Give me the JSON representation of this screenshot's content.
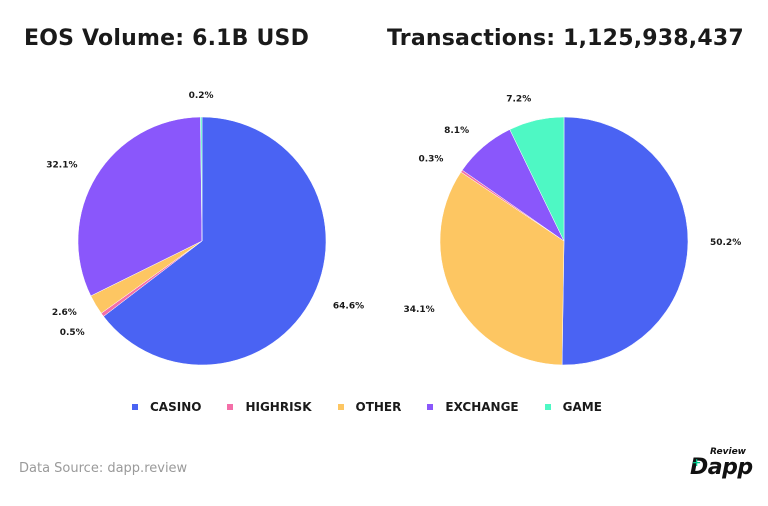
{
  "titles": {
    "left": "EOS Volume: 6.1B USD",
    "right": "Transactions: 1,125,938,437"
  },
  "colors": {
    "CASINO": "#4a63f3",
    "HIGHRISK": "#f46fa8",
    "OTHER": "#fdc662",
    "EXCHANGE": "#8a57fb",
    "GAME": "#4ef8c4"
  },
  "chart_data": [
    {
      "type": "pie",
      "title": "EOS Volume: 6.1B USD",
      "slices": [
        {
          "label": "CASINO",
          "value": 64.6,
          "text": "64.6%"
        },
        {
          "label": "HIGHRISK",
          "value": 0.5,
          "text": "0.5%"
        },
        {
          "label": "OTHER",
          "value": 2.6,
          "text": "2.6%"
        },
        {
          "label": "EXCHANGE",
          "value": 32.1,
          "text": "32.1%"
        },
        {
          "label": "GAME",
          "value": 0.2,
          "text": "0.2%"
        }
      ]
    },
    {
      "type": "pie",
      "title": "Transactions: 1,125,938,437",
      "slices": [
        {
          "label": "CASINO",
          "value": 50.2,
          "text": "50.2%"
        },
        {
          "label": "OTHER",
          "value": 34.1,
          "text": "34.1%"
        },
        {
          "label": "HIGHRISK",
          "value": 0.3,
          "text": "0.3%"
        },
        {
          "label": "EXCHANGE",
          "value": 8.1,
          "text": "8.1%"
        },
        {
          "label": "GAME",
          "value": 7.2,
          "text": "7.2%"
        }
      ]
    }
  ],
  "legend": [
    {
      "label": "CASINO"
    },
    {
      "label": "HIGHRISK"
    },
    {
      "label": "OTHER"
    },
    {
      "label": "EXCHANGE"
    },
    {
      "label": "GAME"
    }
  ],
  "footer": {
    "source": "Data Source: dapp.review",
    "logo_small": "Review",
    "logo_main": "Dapp",
    "logo_plus": "+"
  }
}
